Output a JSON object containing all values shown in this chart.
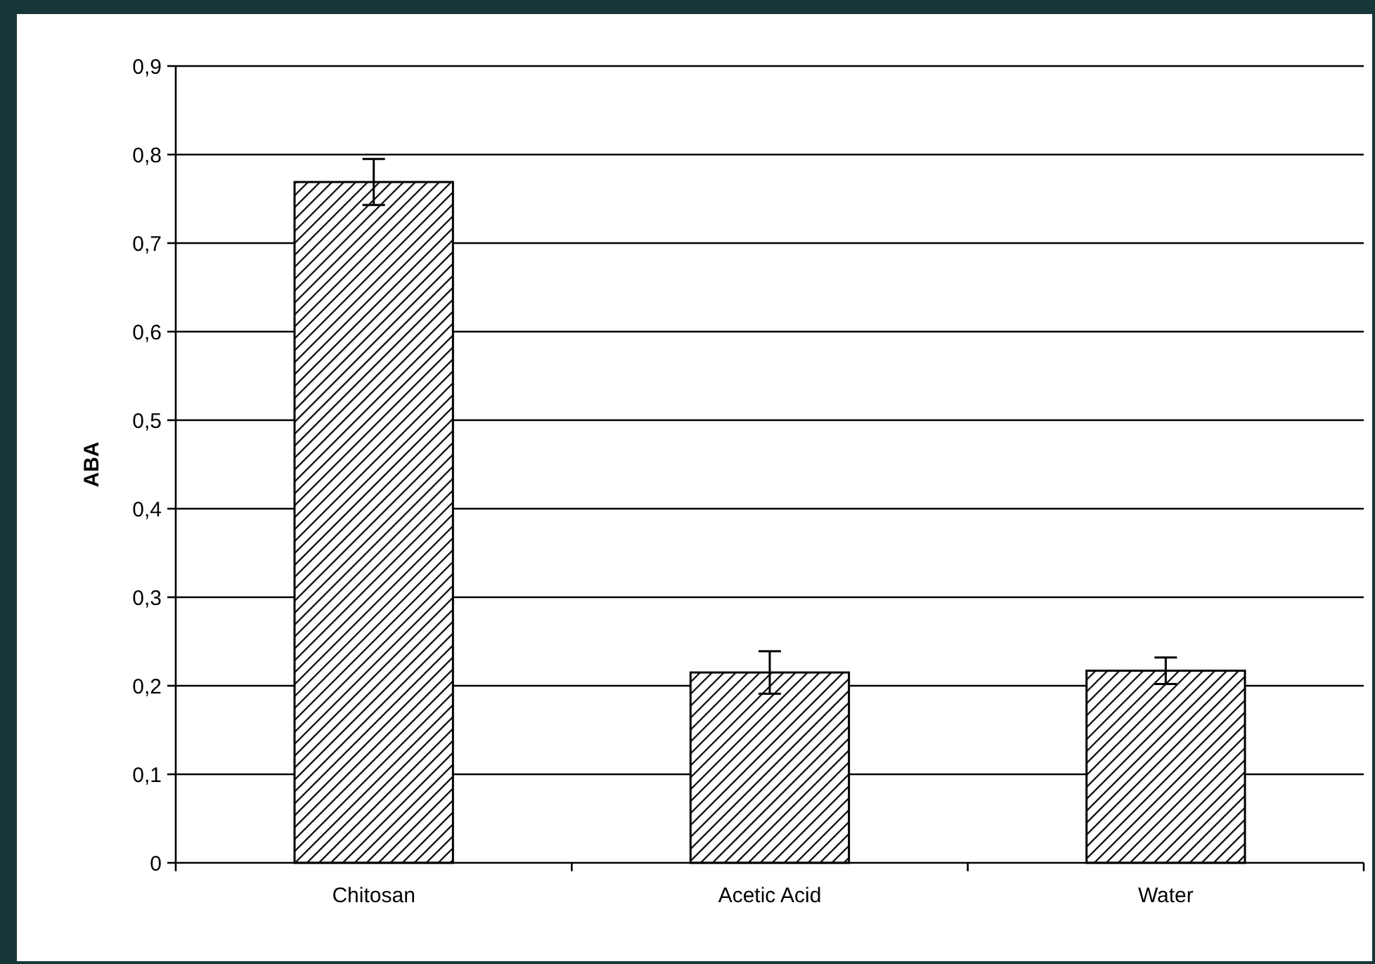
{
  "chart_data": {
    "type": "bar",
    "ylabel": "ABA",
    "categories": [
      "Chitosan",
      "Acetic Acid",
      "Water"
    ],
    "values": [
      0.769,
      0.215,
      0.217
    ],
    "errors": [
      0.026,
      0.024,
      0.015
    ],
    "color": "#000000",
    "ylim": [
      0,
      0.9
    ],
    "yticks": [
      0,
      {
        "value": 0.1,
        "label": "0,1"
      },
      {
        "value": 0.2,
        "label": "0,2"
      },
      {
        "value": 0.3,
        "label": "0,3"
      },
      {
        "value": 0.4,
        "label": "0,4"
      },
      {
        "value": 0.5,
        "label": "0,5"
      },
      {
        "value": 0.6,
        "label": "0,6"
      },
      {
        "value": 0.7,
        "label": "0,7"
      },
      {
        "value": 0.8,
        "label": "0,8"
      },
      {
        "value": 0.9,
        "label": "0,9"
      }
    ],
    "grid": "y"
  }
}
